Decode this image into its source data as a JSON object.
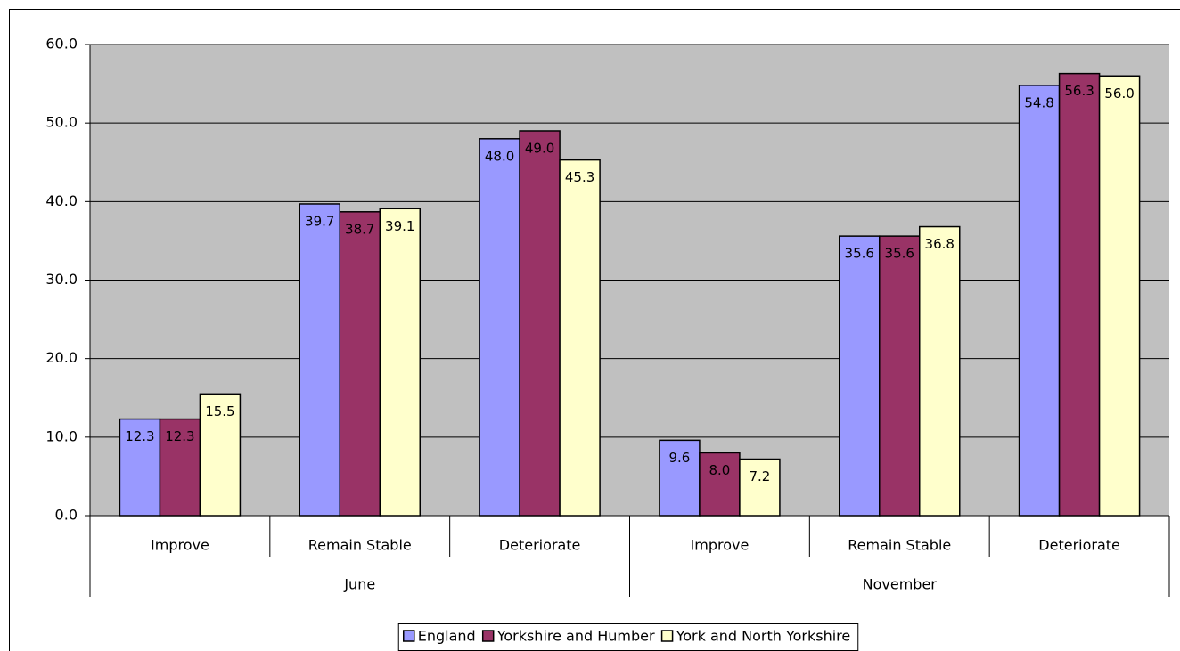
{
  "chart_data": {
    "type": "bar",
    "categories": [
      "Improve",
      "Remain Stable",
      "Deteriorate",
      "Improve",
      "Remain Stable",
      "Deteriorate"
    ],
    "groups": [
      "June",
      "November"
    ],
    "series": [
      {
        "name": "England",
        "color": "#9999FF",
        "values": [
          12.3,
          39.7,
          48.0,
          9.6,
          35.6,
          54.8
        ],
        "value_labels": [
          "12.3",
          "39.7",
          "48.0",
          "9.6",
          "35.6",
          "54.8"
        ]
      },
      {
        "name": "Yorkshire and Humber",
        "color": "#993366",
        "values": [
          12.3,
          38.7,
          49.0,
          8.0,
          35.6,
          56.3
        ],
        "value_labels": [
          "12.3",
          "38.7",
          "49.0",
          "8.0",
          "35.6",
          "56.3"
        ]
      },
      {
        "name": "York and North Yorkshire",
        "color": "#FFFFCC",
        "values": [
          15.5,
          39.1,
          45.3,
          7.2,
          36.8,
          56.0
        ],
        "value_labels": [
          "15.5",
          "39.1",
          "45.3",
          "7.2",
          "36.8",
          "56.0"
        ]
      }
    ],
    "ylim": [
      0,
      60
    ],
    "yticks": [
      {
        "value": 0,
        "label": "0.0"
      },
      {
        "value": 10,
        "label": "10.0"
      },
      {
        "value": 20,
        "label": "20.0"
      },
      {
        "value": 30,
        "label": "30.0"
      },
      {
        "value": 40,
        "label": "40.0"
      },
      {
        "value": 50,
        "label": "50.0"
      },
      {
        "value": 60,
        "label": "60.0"
      }
    ],
    "grid": true,
    "legend": "bottom"
  }
}
